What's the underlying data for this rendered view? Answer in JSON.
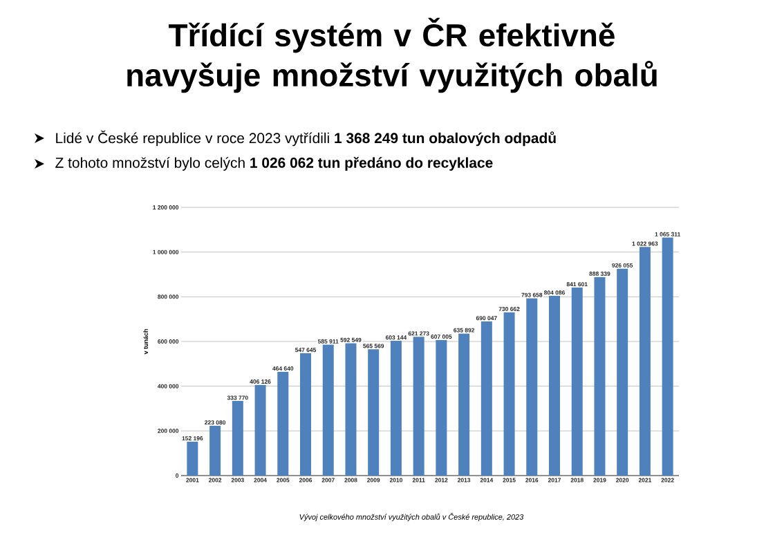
{
  "chart_data": {
    "type": "bar",
    "title": "Třídící systém v ČR efektivně navyšuje množství využitých obalů",
    "ylabel": "v tunách",
    "annotations": [
      "Lidé v České republice v roce 2023 vytřídili **1 368 249 tun obalových odpadů**",
      "Z tohoto množství bylo celých **1 026 062 tun předáno do recyklace**",
      "*Vývoj celkového množství využitých obalů v České republice, 2023*"
    ],
    "categories": [
      "2001",
      "2002",
      "2003",
      "2004",
      "2005",
      "2006",
      "2007",
      "2008",
      "2009",
      "2010",
      "2011",
      "2012",
      "2013",
      "2014",
      "2015",
      "2016",
      "2017",
      "2018",
      "2019",
      "2020",
      "2021",
      "2022"
    ],
    "values": [
      152196,
      223080,
      333770,
      406126,
      464640,
      547645,
      585911,
      592549,
      565569,
      603144,
      621273,
      607005,
      635892,
      690047,
      730662,
      793658,
      804086,
      841601,
      888339,
      926055,
      1022963,
      1065311
    ],
    "value_labels": [
      "152 196",
      "223 080",
      "333 770",
      "406 126",
      "464 640",
      "547 645",
      "585 911",
      "592 549",
      "565 569",
      "603 144",
      "621 273",
      "607 005",
      "635 892",
      "690 047",
      "730 662",
      "793 658",
      "804 086",
      "841 601",
      "888 339",
      "926 055",
      "1 022 963",
      "1 065 311"
    ],
    "color": "#4f81bd",
    "ylim": [
      0,
      1200000
    ],
    "yticks": [
      0,
      {
        "value": 200000,
        "label": "200 000"
      },
      {
        "value": 400000,
        "label": "400 000"
      },
      {
        "value": 600000,
        "label": "600 000"
      },
      {
        "value": 800000,
        "label": "800 000"
      },
      {
        "value": 1000000,
        "label": "1 000 000"
      },
      {
        "value": 1200000,
        "label": "1 200 000"
      }
    ],
    "grid": "y"
  }
}
